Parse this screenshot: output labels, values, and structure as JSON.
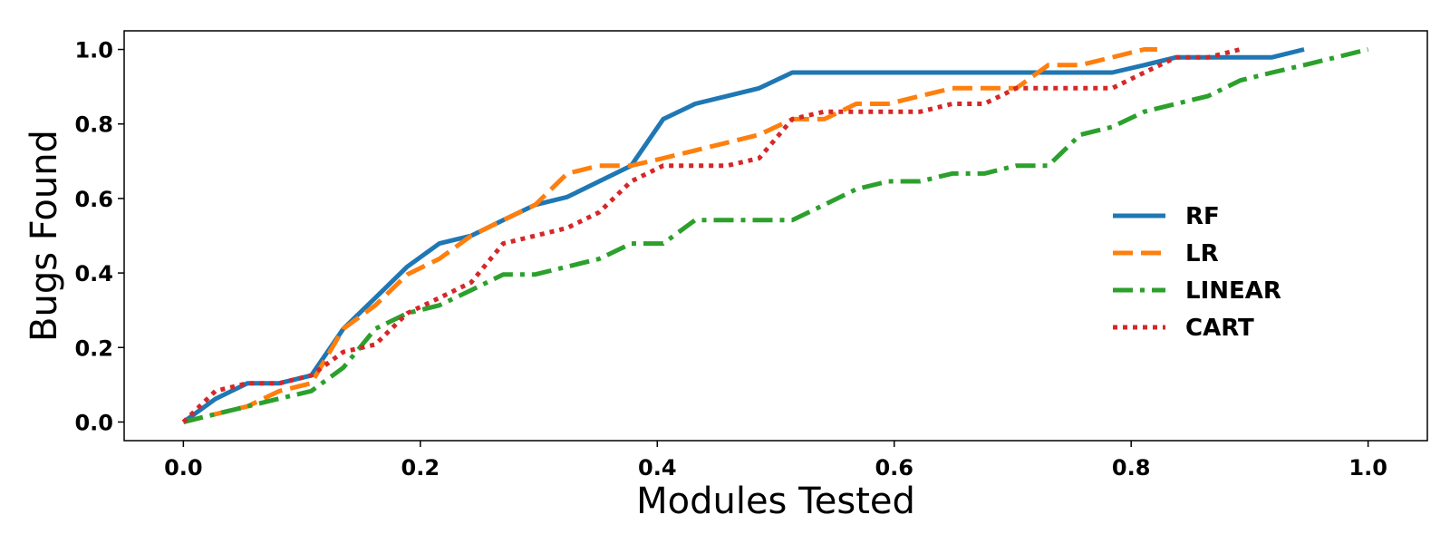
{
  "chart_data": {
    "type": "line",
    "title": "",
    "xlabel": "Modules Tested",
    "ylabel": "Bugs Found",
    "xlim": [
      -0.05,
      1.05
    ],
    "ylim": [
      -0.05,
      1.05
    ],
    "xticks": [
      0.0,
      0.2,
      0.4,
      0.6,
      0.8,
      1.0
    ],
    "xtick_labels": [
      "0.0",
      "0.2",
      "0.4",
      "0.6",
      "0.8",
      "1.0"
    ],
    "yticks": [
      0.0,
      0.2,
      0.4,
      0.6,
      0.8,
      1.0
    ],
    "ytick_labels": [
      "0.0",
      "0.2",
      "0.4",
      "0.6",
      "0.8",
      "1.0"
    ],
    "grid": false,
    "legend_position": "center-right",
    "series": [
      {
        "name": "RF",
        "color": "#1f77b4",
        "style": "solid",
        "x": [
          0.0,
          0.027,
          0.054,
          0.081,
          0.108,
          0.135,
          0.162,
          0.189,
          0.216,
          0.243,
          0.27,
          0.297,
          0.324,
          0.351,
          0.378,
          0.405,
          0.432,
          0.459,
          0.486,
          0.514,
          0.541,
          0.568,
          0.595,
          0.622,
          0.649,
          0.676,
          0.703,
          0.73,
          0.757,
          0.784,
          0.811,
          0.838,
          0.865,
          0.892,
          0.919,
          0.946
        ],
        "y": [
          0.0,
          0.062,
          0.104,
          0.104,
          0.125,
          0.25,
          0.333,
          0.417,
          0.479,
          0.5,
          0.542,
          0.583,
          0.604,
          0.646,
          0.688,
          0.813,
          0.854,
          0.875,
          0.896,
          0.938,
          0.938,
          0.938,
          0.938,
          0.938,
          0.938,
          0.938,
          0.938,
          0.938,
          0.938,
          0.938,
          0.958,
          0.979,
          0.979,
          0.979,
          0.979,
          1.0
        ]
      },
      {
        "name": "LR",
        "color": "#ff7f0e",
        "style": "dashed",
        "x": [
          0.0,
          0.027,
          0.054,
          0.081,
          0.108,
          0.135,
          0.162,
          0.189,
          0.216,
          0.243,
          0.27,
          0.297,
          0.324,
          0.351,
          0.378,
          0.405,
          0.432,
          0.459,
          0.486,
          0.514,
          0.541,
          0.568,
          0.595,
          0.622,
          0.649,
          0.676,
          0.703,
          0.73,
          0.757,
          0.784,
          0.811,
          0.822
        ],
        "y": [
          0.0,
          0.021,
          0.042,
          0.083,
          0.104,
          0.25,
          0.313,
          0.396,
          0.438,
          0.5,
          0.542,
          0.583,
          0.667,
          0.688,
          0.688,
          0.708,
          0.729,
          0.75,
          0.771,
          0.813,
          0.813,
          0.854,
          0.854,
          0.875,
          0.896,
          0.896,
          0.896,
          0.958,
          0.958,
          0.979,
          1.0,
          1.0
        ]
      },
      {
        "name": "LINEAR",
        "color": "#2ca02c",
        "style": "dashdot",
        "x": [
          0.0,
          0.027,
          0.054,
          0.081,
          0.108,
          0.135,
          0.162,
          0.189,
          0.216,
          0.243,
          0.27,
          0.297,
          0.324,
          0.351,
          0.378,
          0.405,
          0.432,
          0.459,
          0.486,
          0.514,
          0.541,
          0.568,
          0.595,
          0.622,
          0.649,
          0.676,
          0.703,
          0.73,
          0.757,
          0.784,
          0.811,
          0.838,
          0.865,
          0.892,
          0.919,
          0.946,
          0.973,
          1.0
        ],
        "y": [
          0.0,
          0.021,
          0.042,
          0.063,
          0.083,
          0.146,
          0.25,
          0.292,
          0.313,
          0.354,
          0.396,
          0.396,
          0.417,
          0.438,
          0.479,
          0.479,
          0.542,
          0.542,
          0.542,
          0.542,
          0.583,
          0.625,
          0.646,
          0.646,
          0.667,
          0.667,
          0.688,
          0.688,
          0.771,
          0.792,
          0.833,
          0.854,
          0.875,
          0.917,
          0.938,
          0.958,
          0.979,
          1.0
        ]
      },
      {
        "name": "CART",
        "color": "#d62728",
        "style": "dotted",
        "x": [
          0.0,
          0.027,
          0.054,
          0.081,
          0.108,
          0.135,
          0.162,
          0.189,
          0.216,
          0.243,
          0.27,
          0.297,
          0.324,
          0.351,
          0.378,
          0.405,
          0.432,
          0.459,
          0.486,
          0.514,
          0.541,
          0.568,
          0.595,
          0.622,
          0.649,
          0.676,
          0.703,
          0.73,
          0.757,
          0.784,
          0.811,
          0.838,
          0.865,
          0.892
        ],
        "y": [
          0.0,
          0.083,
          0.104,
          0.104,
          0.125,
          0.188,
          0.208,
          0.292,
          0.333,
          0.375,
          0.479,
          0.5,
          0.521,
          0.563,
          0.646,
          0.688,
          0.688,
          0.688,
          0.708,
          0.813,
          0.833,
          0.833,
          0.833,
          0.833,
          0.854,
          0.854,
          0.896,
          0.896,
          0.896,
          0.896,
          0.938,
          0.979,
          0.979,
          1.0
        ]
      }
    ]
  }
}
